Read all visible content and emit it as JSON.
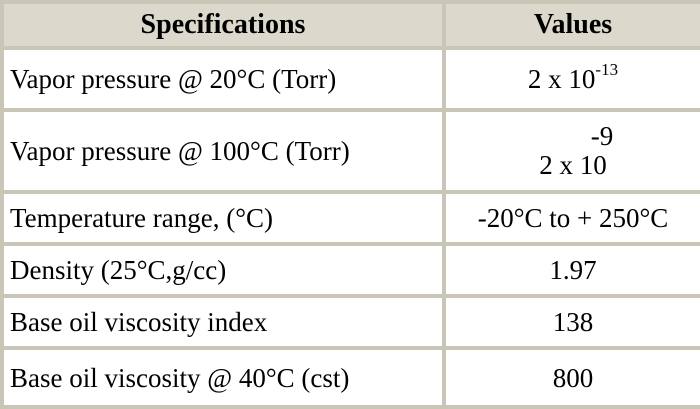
{
  "table": {
    "headers": {
      "specifications": "Specifications",
      "values": "Values"
    },
    "rows": [
      {
        "label": "Vapor pressure @ 20°C (Torr)",
        "base": "2 x 10",
        "exponent": "-13"
      },
      {
        "label": "Vapor pressure @ 100°C (Torr)",
        "exponent": "-9",
        "base": "2 x 10"
      },
      {
        "label": "Temperature range, (°C)",
        "value": "-20°C to + 250°C"
      },
      {
        "label": "Density (25°C,g/cc)",
        "value": "1.97"
      },
      {
        "label": "Base oil viscosity index",
        "value": "138"
      },
      {
        "label": "Base oil viscosity @ 40°C (cst)",
        "value": "800"
      }
    ]
  }
}
